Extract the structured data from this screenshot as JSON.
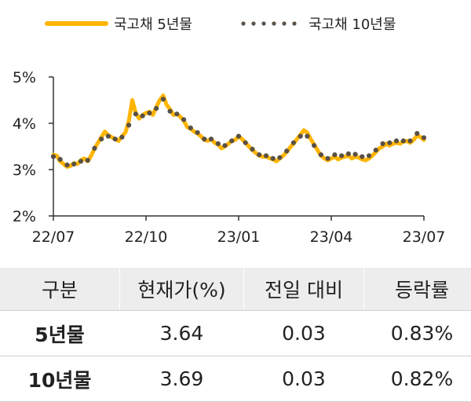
{
  "chart_data": {
    "type": "line",
    "ylim": [
      2,
      5
    ],
    "yticks": [
      "2%",
      "3%",
      "4%",
      "5%"
    ],
    "xticks": [
      "22/07",
      "22/10",
      "23/01",
      "23/04",
      "23/07"
    ],
    "grid": false,
    "legend_position": "top",
    "series": [
      {
        "name": "국고채 5년물",
        "color": "#FFB500",
        "style": "solid",
        "values": [
          3.32,
          3.3,
          3.18,
          3.12,
          3.06,
          3.08,
          3.14,
          3.12,
          3.2,
          3.24,
          3.18,
          3.3,
          3.45,
          3.58,
          3.7,
          3.82,
          3.74,
          3.7,
          3.66,
          3.62,
          3.72,
          3.8,
          4.05,
          4.5,
          4.22,
          4.1,
          4.18,
          4.22,
          4.25,
          4.18,
          4.35,
          4.5,
          4.6,
          4.4,
          4.3,
          4.18,
          4.2,
          4.14,
          4.06,
          3.92,
          3.88,
          3.82,
          3.78,
          3.72,
          3.64,
          3.62,
          3.66,
          3.58,
          3.54,
          3.46,
          3.5,
          3.56,
          3.62,
          3.64,
          3.72,
          3.66,
          3.58,
          3.5,
          3.42,
          3.36,
          3.3,
          3.28,
          3.28,
          3.25,
          3.22,
          3.18,
          3.24,
          3.3,
          3.38,
          3.48,
          3.56,
          3.66,
          3.75,
          3.85,
          3.8,
          3.66,
          3.54,
          3.42,
          3.3,
          3.24,
          3.2,
          3.24,
          3.28,
          3.22,
          3.26,
          3.28,
          3.3,
          3.24,
          3.28,
          3.26,
          3.22,
          3.2,
          3.24,
          3.3,
          3.38,
          3.46,
          3.5,
          3.56,
          3.52,
          3.56,
          3.58,
          3.56,
          3.6,
          3.62,
          3.58,
          3.64,
          3.74,
          3.7,
          3.64
        ]
      },
      {
        "name": "국고채 10년물",
        "color": "#5A5046",
        "style": "dotted",
        "values": [
          3.28,
          3.32,
          3.22,
          3.14,
          3.1,
          3.08,
          3.12,
          3.14,
          3.18,
          3.22,
          3.2,
          3.32,
          3.46,
          3.58,
          3.66,
          3.74,
          3.72,
          3.68,
          3.66,
          3.64,
          3.7,
          3.78,
          3.96,
          4.24,
          4.2,
          4.12,
          4.16,
          4.2,
          4.22,
          4.18,
          4.32,
          4.44,
          4.52,
          4.36,
          4.26,
          4.18,
          4.2,
          4.16,
          4.08,
          3.94,
          3.9,
          3.84,
          3.8,
          3.74,
          3.66,
          3.64,
          3.66,
          3.6,
          3.56,
          3.48,
          3.52,
          3.56,
          3.62,
          3.66,
          3.72,
          3.66,
          3.58,
          3.52,
          3.44,
          3.38,
          3.32,
          3.3,
          3.3,
          3.27,
          3.24,
          3.2,
          3.26,
          3.32,
          3.4,
          3.5,
          3.58,
          3.66,
          3.72,
          3.76,
          3.72,
          3.62,
          3.52,
          3.42,
          3.32,
          3.28,
          3.24,
          3.28,
          3.32,
          3.28,
          3.3,
          3.3,
          3.34,
          3.3,
          3.33,
          3.3,
          3.28,
          3.26,
          3.3,
          3.36,
          3.42,
          3.5,
          3.56,
          3.6,
          3.58,
          3.6,
          3.62,
          3.6,
          3.62,
          3.64,
          3.62,
          3.66,
          3.78,
          3.72,
          3.69
        ]
      }
    ]
  },
  "table": {
    "headers": [
      "구분",
      "현재가(%)",
      "전일 대비",
      "등락률"
    ],
    "rows": [
      {
        "name": "5년물",
        "price": "3.64",
        "change": "0.03",
        "rate": "0.83%"
      },
      {
        "name": "10년물",
        "price": "3.69",
        "change": "0.03",
        "rate": "0.82%"
      }
    ]
  }
}
